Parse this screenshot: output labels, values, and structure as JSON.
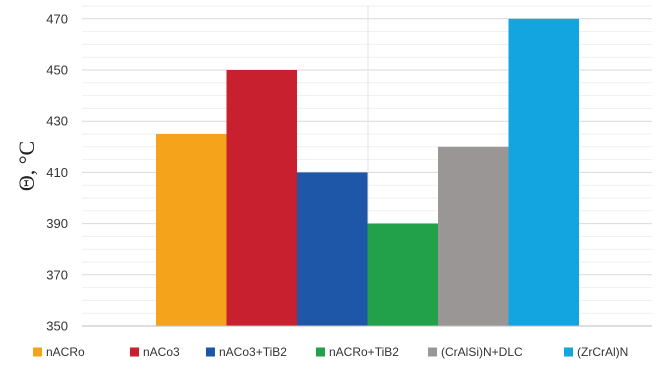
{
  "chart_data": {
    "type": "bar",
    "title": "",
    "xlabel": "",
    "ylabel": "Θ, °C",
    "ylim": [
      350,
      475
    ],
    "yticks": [
      350,
      370,
      390,
      410,
      430,
      450,
      470
    ],
    "grid": true,
    "legend_position": "bottom",
    "series": [
      {
        "name": "nACRo",
        "value": 425,
        "color": "#F5A31A"
      },
      {
        "name": "nACo3",
        "value": 450,
        "color": "#C8202F"
      },
      {
        "name": "nACo3+TiB2",
        "value": 410,
        "color": "#1E56A8"
      },
      {
        "name": "nACRo+TiB2",
        "value": 390,
        "color": "#23A04A"
      },
      {
        "name": "(CrAlSi)N+DLC",
        "value": 420,
        "color": "#9A9696"
      },
      {
        "name": "(ZrCrAl)N",
        "value": 470,
        "color": "#12A5E0"
      }
    ]
  }
}
